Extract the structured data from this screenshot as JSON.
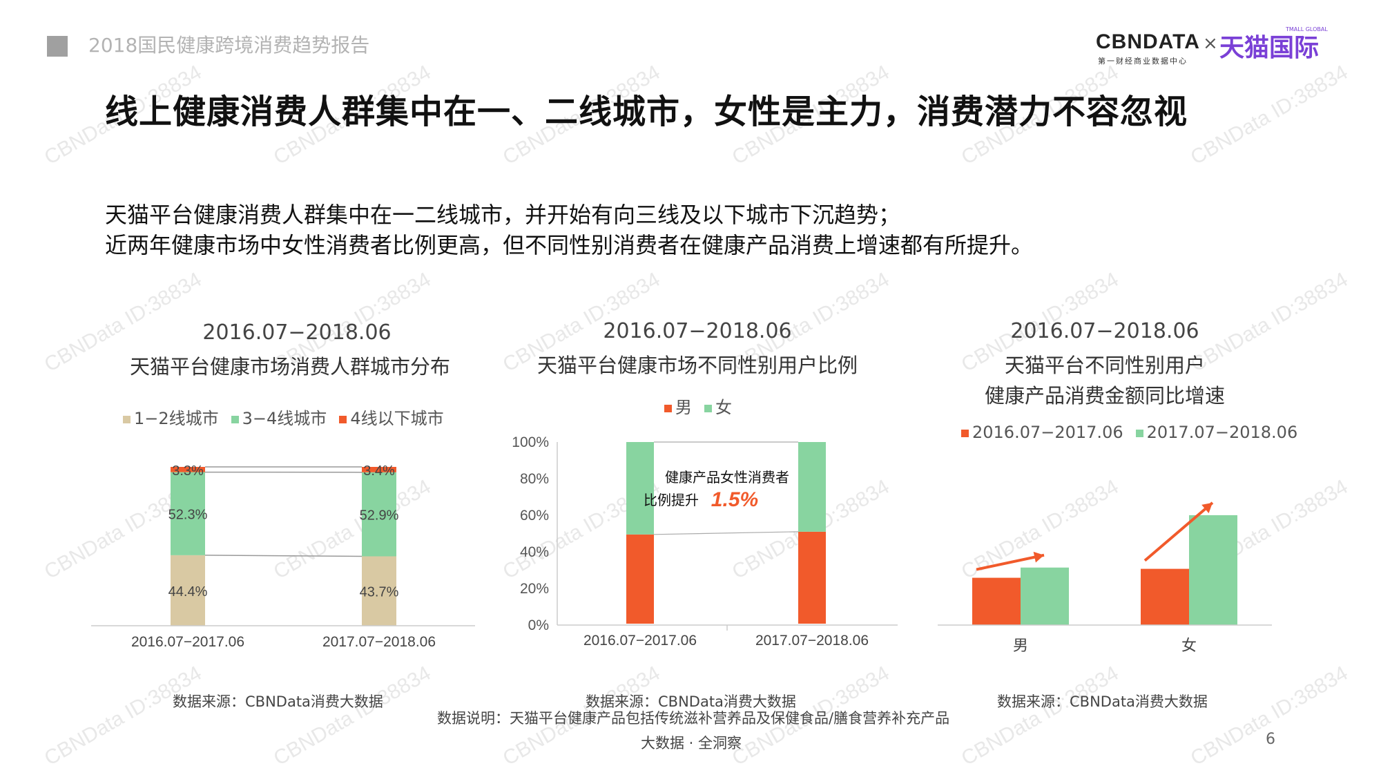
{
  "header": {
    "report_title": "2018国民健康跨境消费趋势报告"
  },
  "logo": {
    "cbn": "CBNDATA",
    "cbn_sub": "第一财经商业数据中心",
    "x": "×",
    "tmall": "天猫国际",
    "tmall_sub": "TMALL GLOBAL"
  },
  "main_title": "线上健康消费人群集中在一、二线城市，女性是主力，消费潜力不容忽视",
  "description": [
    "天猫平台健康消费人群集中在一二线城市，并开始有向三线及以下城市下沉趋势；",
    "近两年健康市场中女性消费者比例更高，但不同性别消费者在健康产品消费上增速都有所提升。"
  ],
  "watermark": "CBNData ID:38834",
  "colors": {
    "beige": "#d9c9a3",
    "green": "#88d4a0",
    "orange": "#f15a2b",
    "gray_text": "#444444"
  },
  "chart_data": [
    {
      "type": "bar",
      "stacked": true,
      "period": "2016.07−2018.06",
      "title": "天猫平台健康市场消费人群城市分布",
      "categories": [
        "2016.07−2017.06",
        "2017.07−2018.06"
      ],
      "series": [
        {
          "name": "1−2线城市",
          "values": [
            44.4,
            43.7
          ],
          "labels": [
            "44.4%",
            "43.7%"
          ],
          "color": "#d9c9a3"
        },
        {
          "name": "3−4线城市",
          "values": [
            52.3,
            52.9
          ],
          "labels": [
            "52.3%",
            "52.9%"
          ],
          "color": "#88d4a0"
        },
        {
          "name": "4线以下城市",
          "values": [
            3.3,
            3.4
          ],
          "labels": [
            "3.3%",
            "3.4%"
          ],
          "color": "#f15a2b"
        }
      ],
      "ylim": [
        0,
        100
      ],
      "legend": "top",
      "source": "数据来源：CBNData消费大数据"
    },
    {
      "type": "bar",
      "stacked": true,
      "period": "2016.07−2018.06",
      "title": "天猫平台健康市场不同性别用户比例",
      "categories": [
        "2016.07−2017.06",
        "2017.07−2018.06"
      ],
      "series": [
        {
          "name": "男",
          "values": [
            49.5,
            51.0
          ],
          "color": "#f15a2b"
        },
        {
          "name": "女",
          "values": [
            50.5,
            49.0
          ],
          "color": "#88d4a0"
        }
      ],
      "yticks": [
        "0%",
        "20%",
        "40%",
        "60%",
        "80%",
        "100%"
      ],
      "ylim": [
        0,
        100
      ],
      "legend": "top",
      "annotation": {
        "text1": "健康产品女性消费者",
        "text2": "比例提升",
        "value": "1.5%"
      },
      "source": "数据来源：CBNData消费大数据",
      "note": "数据说明：天猫平台健康产品包括传统滋补营养品及保健食品/膳食营养补充产品"
    },
    {
      "type": "bar",
      "period": "2016.07−2018.06",
      "title_line1": "天猫平台不同性别用户",
      "title_line2": "健康产品消费金额同比增速",
      "categories": [
        "男",
        "女"
      ],
      "series": [
        {
          "name": "2016.07−2017.06",
          "values": [
            37,
            44
          ],
          "color": "#f15a2b"
        },
        {
          "name": "2017.07−2018.06",
          "values": [
            45,
            86
          ],
          "color": "#88d4a0"
        }
      ],
      "ylim": [
        0,
        100
      ],
      "legend": "top",
      "source": "数据来源：CBNData消费大数据"
    }
  ],
  "footer": {
    "tagline": "大数据 · 全洞察",
    "page_number": "6"
  }
}
